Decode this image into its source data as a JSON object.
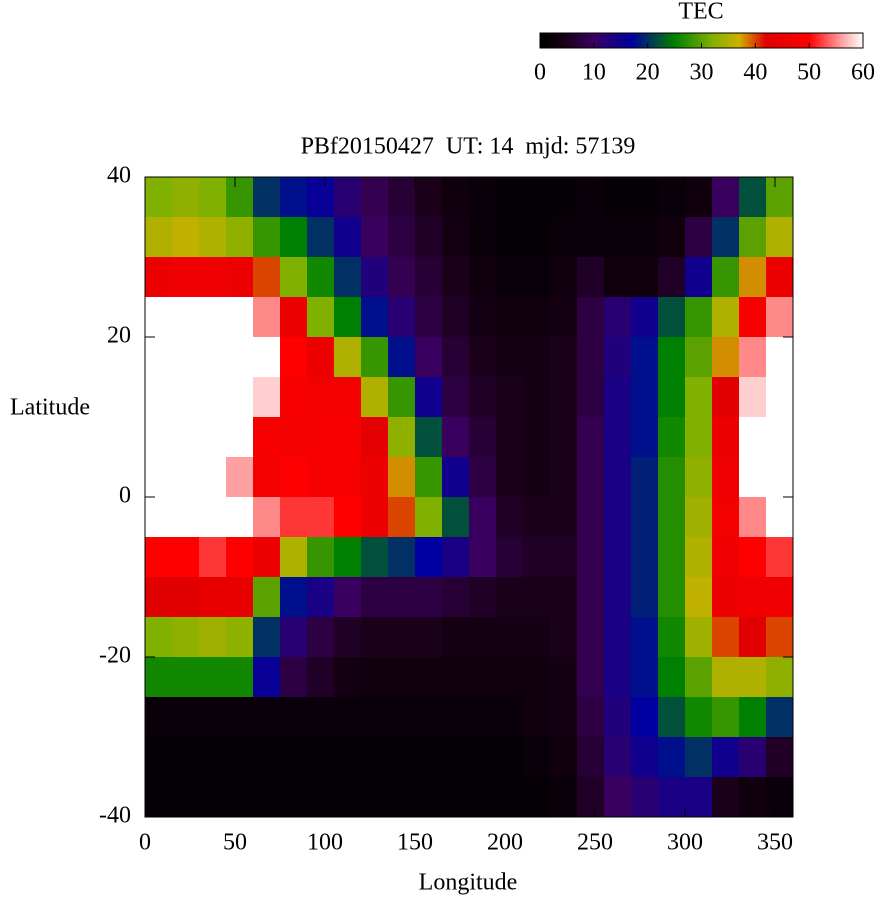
{
  "chart_data": {
    "type": "heatmap",
    "title": "PBf20150427  UT: 14  mjd: 57139",
    "xlabel": "Longitude",
    "ylabel": "Latitude",
    "xlim": [
      0,
      360
    ],
    "ylim": [
      -40,
      40
    ],
    "xticks": [
      0,
      50,
      100,
      150,
      200,
      250,
      300,
      350
    ],
    "yticks": [
      -40,
      -20,
      0,
      20,
      40
    ],
    "x": [
      7.5,
      22.5,
      37.5,
      52.5,
      67.5,
      82.5,
      97.5,
      112.5,
      127.5,
      142.5,
      157.5,
      172.5,
      187.5,
      202.5,
      217.5,
      232.5,
      247.5,
      262.5,
      277.5,
      292.5,
      307.5,
      322.5,
      337.5,
      352.5
    ],
    "y": [
      37.5,
      32.5,
      27.5,
      22.5,
      17.5,
      12.5,
      7.5,
      2.5,
      -2.5,
      -7.5,
      -12.5,
      -17.5,
      -22.5,
      -27.5,
      -32.5,
      -37.5
    ],
    "z": [
      [
        32,
        33,
        32,
        28,
        20,
        18,
        16,
        12,
        9,
        7,
        5,
        3,
        2,
        1,
        1,
        1,
        2,
        1,
        1,
        2,
        3,
        10,
        22,
        30
      ],
      [
        35,
        36,
        35,
        33,
        28,
        25,
        20,
        15,
        10,
        8,
        6,
        4,
        2,
        1,
        1,
        2,
        2,
        2,
        2,
        3,
        8,
        20,
        30,
        35
      ],
      [
        45,
        46,
        46,
        45,
        40,
        32,
        26,
        20,
        13,
        9,
        7,
        5,
        3,
        2,
        2,
        3,
        6,
        3,
        3,
        6,
        15,
        28,
        38,
        45
      ],
      [
        60,
        60,
        60,
        60,
        55,
        45,
        32,
        25,
        18,
        12,
        8,
        6,
        4,
        3,
        3,
        4,
        8,
        12,
        15,
        22,
        28,
        35,
        48,
        55
      ],
      [
        60,
        60,
        60,
        60,
        60,
        50,
        45,
        35,
        28,
        18,
        10,
        7,
        5,
        4,
        4,
        5,
        8,
        13,
        18,
        25,
        30,
        38,
        55,
        60
      ],
      [
        60,
        60,
        60,
        60,
        58,
        48,
        47,
        47,
        35,
        28,
        15,
        8,
        6,
        5,
        4,
        5,
        8,
        14,
        18,
        25,
        32,
        42,
        58,
        60
      ],
      [
        60,
        60,
        60,
        60,
        48,
        47,
        48,
        48,
        43,
        33,
        22,
        10,
        7,
        5,
        4,
        5,
        9,
        14,
        18,
        26,
        32,
        45,
        60,
        60
      ],
      [
        60,
        60,
        60,
        56,
        47,
        50,
        48,
        48,
        45,
        38,
        28,
        15,
        8,
        5,
        4,
        5,
        9,
        14,
        19,
        27,
        33,
        46,
        60,
        60
      ],
      [
        60,
        60,
        60,
        60,
        55,
        52,
        52,
        50,
        45,
        40,
        32,
        22,
        10,
        6,
        5,
        5,
        9,
        14,
        19,
        27,
        34,
        47,
        55,
        60
      ],
      [
        50,
        50,
        52,
        50,
        45,
        35,
        28,
        25,
        22,
        20,
        17,
        14,
        10,
        7,
        6,
        6,
        9,
        14,
        19,
        27,
        35,
        46,
        50,
        52
      ],
      [
        42,
        42,
        44,
        44,
        30,
        18,
        14,
        10,
        8,
        8,
        8,
        7,
        6,
        5,
        5,
        5,
        9,
        14,
        19,
        27,
        36,
        45,
        46,
        46
      ],
      [
        32,
        33,
        34,
        33,
        20,
        12,
        8,
        6,
        5,
        5,
        5,
        4,
        4,
        4,
        4,
        5,
        9,
        14,
        18,
        26,
        34,
        40,
        42,
        40
      ],
      [
        26,
        26,
        26,
        26,
        16,
        8,
        6,
        4,
        3,
        3,
        3,
        3,
        3,
        3,
        3,
        4,
        9,
        14,
        18,
        25,
        30,
        35,
        35,
        33
      ],
      [
        2,
        2,
        2,
        2,
        2,
        2,
        2,
        2,
        2,
        2,
        2,
        2,
        2,
        2,
        3,
        4,
        8,
        13,
        17,
        22,
        26,
        28,
        25,
        20
      ],
      [
        1,
        1,
        1,
        1,
        1,
        1,
        1,
        1,
        1,
        1,
        1,
        1,
        1,
        1,
        2,
        3,
        7,
        12,
        15,
        18,
        20,
        15,
        12,
        6
      ],
      [
        1,
        1,
        1,
        1,
        1,
        1,
        1,
        1,
        1,
        1,
        1,
        1,
        1,
        1,
        1,
        2,
        6,
        10,
        12,
        14,
        14,
        5,
        3,
        2
      ]
    ],
    "colorbar": {
      "label": "TEC",
      "lim": [
        0,
        60
      ],
      "ticks": [
        0,
        10,
        20,
        30,
        40,
        50,
        60
      ],
      "colorscale": [
        [
          0,
          "#000000"
        ],
        [
          5,
          "#1a0018"
        ],
        [
          10,
          "#3a0060"
        ],
        [
          17,
          "#0000a0"
        ],
        [
          25,
          "#008000"
        ],
        [
          32,
          "#80b000"
        ],
        [
          37,
          "#d0b000"
        ],
        [
          42,
          "#e00000"
        ],
        [
          50,
          "#ff0000"
        ],
        [
          55,
          "#ff8888"
        ],
        [
          60,
          "#ffffff"
        ]
      ]
    }
  }
}
